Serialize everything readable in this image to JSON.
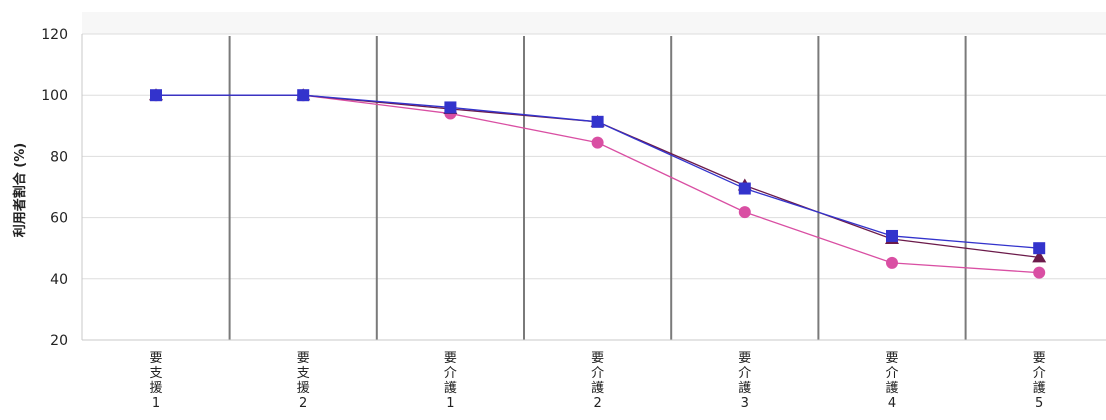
{
  "chart_data": {
    "type": "line",
    "title": "",
    "xlabel": "",
    "ylabel": "利用者割合 (%)",
    "ylim": [
      20,
      120
    ],
    "yticks": [
      20,
      40,
      60,
      80,
      100,
      120
    ],
    "grid": true,
    "legend": "none",
    "categories": [
      [
        "要",
        "支",
        "援",
        "1"
      ],
      [
        "要",
        "支",
        "援",
        "2"
      ],
      [
        "要",
        "介",
        "護",
        "1"
      ],
      [
        "要",
        "介",
        "護",
        "2"
      ],
      [
        "要",
        "介",
        "護",
        "3"
      ],
      [
        "要",
        "介",
        "護",
        "4"
      ],
      [
        "要",
        "介",
        "護",
        "5"
      ]
    ],
    "series": [
      {
        "marker": "circle",
        "color": "#d94fa3",
        "values": [
          100,
          100,
          94,
          84.5,
          61.8,
          45.2,
          42
        ]
      },
      {
        "marker": "triangle",
        "color": "#6b1a4a",
        "values": [
          100,
          100,
          95.5,
          91.3,
          70.5,
          53,
          47
        ]
      },
      {
        "marker": "square",
        "color": "#3333cc",
        "values": [
          100,
          100,
          96,
          91.3,
          69.5,
          54,
          50
        ]
      }
    ]
  }
}
